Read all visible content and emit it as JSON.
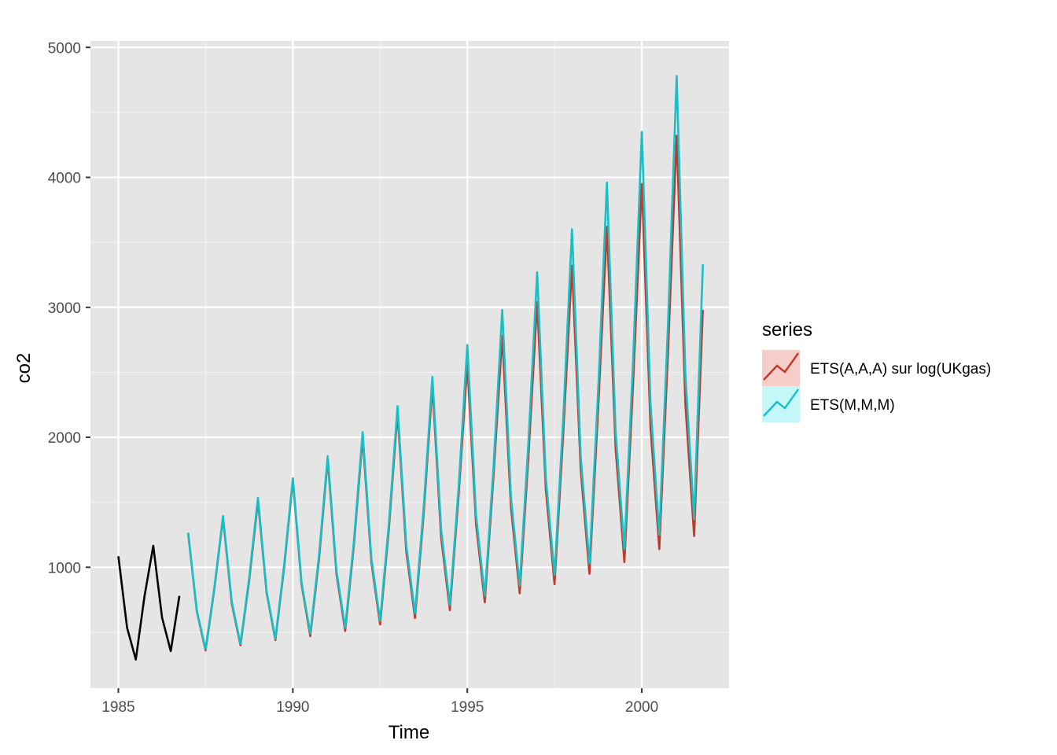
{
  "chart_data": {
    "type": "line",
    "xlabel": "Time",
    "ylabel": "co2",
    "xlim": [
      1984.2,
      2002.5
    ],
    "ylim": [
      70,
      5050
    ],
    "x_ticks": [
      1985,
      1990,
      1995,
      2000
    ],
    "y_ticks": [
      1000,
      2000,
      3000,
      4000,
      5000
    ],
    "grid": true,
    "legend": {
      "title": "series",
      "position": "right",
      "entries": [
        "ETS(A,A,A) sur log(UKgas)",
        "ETS(M,M,M)"
      ]
    },
    "history": {
      "color": "#000000",
      "x": [
        1985.0,
        1985.25,
        1985.5,
        1985.75,
        1986.0,
        1986.25,
        1986.5,
        1986.75
      ],
      "y": [
        1085,
        535,
        290,
        780,
        1165,
        615,
        355,
        780
      ]
    },
    "series": [
      {
        "name": "ETS(A,A,A) sur log(UKgas)",
        "color": "#c0392b",
        "fill": "#f6cdc8",
        "x": [
          1987.0,
          1987.25,
          1987.5,
          1987.75,
          1988.0,
          1988.25,
          1988.5,
          1988.75,
          1989.0,
          1989.25,
          1989.5,
          1989.75,
          1990.0,
          1990.25,
          1990.5,
          1990.75,
          1991.0,
          1991.25,
          1991.5,
          1991.75,
          1992.0,
          1992.25,
          1992.5,
          1992.75,
          1993.0,
          1993.25,
          1993.5,
          1993.75,
          1994.0,
          1994.25,
          1994.5,
          1994.75,
          1995.0,
          1995.25,
          1995.5,
          1995.75,
          1996.0,
          1996.25,
          1996.5,
          1996.75,
          1997.0,
          1997.25,
          1997.5,
          1997.75,
          1998.0,
          1998.25,
          1998.5,
          1998.75,
          1999.0,
          1999.25,
          1999.5,
          1999.75,
          2000.0,
          2000.25,
          2000.5,
          2000.75,
          2001.0,
          2001.25,
          2001.5,
          2001.75
        ],
        "y": [
          1265,
          660,
          360,
          830,
          1380,
          720,
          400,
          900,
          1510,
          800,
          440,
          1000,
          1670,
          870,
          470,
          1060,
          1830,
          950,
          510,
          1170,
          2000,
          1040,
          560,
          1290,
          2190,
          1120,
          610,
          1410,
          2400,
          1230,
          670,
          1550,
          2560,
          1330,
          730,
          1700,
          2780,
          1460,
          800,
          1850,
          3040,
          1600,
          870,
          2030,
          3320,
          1750,
          950,
          2220,
          3620,
          1910,
          1040,
          2410,
          3950,
          2070,
          1140,
          2640,
          4320,
          2250,
          1240,
          2980
        ]
      },
      {
        "name": "ETS(M,M,M)",
        "color": "#17bfc6",
        "fill": "#c4f7f7",
        "x": [
          1987.0,
          1987.25,
          1987.5,
          1987.75,
          1988.0,
          1988.25,
          1988.5,
          1988.75,
          1989.0,
          1989.25,
          1989.5,
          1989.75,
          1990.0,
          1990.25,
          1990.5,
          1990.75,
          1991.0,
          1991.25,
          1991.5,
          1991.75,
          1992.0,
          1992.25,
          1992.5,
          1992.75,
          1993.0,
          1993.25,
          1993.5,
          1993.75,
          1994.0,
          1994.25,
          1994.5,
          1994.75,
          1995.0,
          1995.25,
          1995.5,
          1995.75,
          1996.0,
          1996.25,
          1996.5,
          1996.75,
          1997.0,
          1997.25,
          1997.5,
          1997.75,
          1998.0,
          1998.25,
          1998.5,
          1998.75,
          1999.0,
          1999.25,
          1999.5,
          1999.75,
          2000.0,
          2000.25,
          2000.5,
          2000.75,
          2001.0,
          2001.25,
          2001.5,
          2001.75
        ],
        "y": [
          1265,
          665,
          370,
          840,
          1395,
          735,
          410,
          920,
          1535,
          810,
          450,
          1020,
          1685,
          885,
          490,
          1090,
          1855,
          975,
          535,
          1200,
          2040,
          1070,
          590,
          1330,
          2240,
          1170,
          645,
          1460,
          2465,
          1290,
          710,
          1610,
          2710,
          1400,
          780,
          1770,
          2980,
          1540,
          860,
          1960,
          3270,
          1690,
          940,
          2150,
          3600,
          1850,
          1030,
          2360,
          3960,
          2040,
          1140,
          2590,
          4350,
          2250,
          1250,
          2860,
          4780,
          2480,
          1370,
          3330
        ]
      }
    ]
  }
}
